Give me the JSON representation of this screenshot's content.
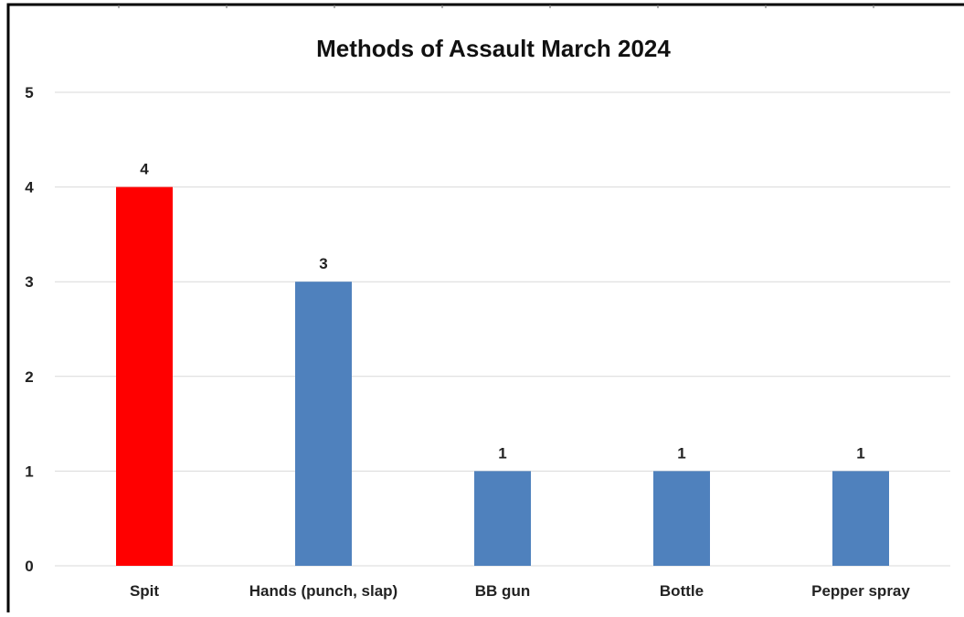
{
  "chart_data": {
    "type": "bar",
    "title": "Methods of Assault March 2024",
    "categories": [
      "Spit",
      "Hands (punch, slap)",
      "BB gun",
      "Bottle",
      "Pepper spray"
    ],
    "values": [
      4,
      3,
      1,
      1,
      1
    ],
    "data_labels": [
      "4",
      "3",
      "1",
      "1",
      "1"
    ],
    "y_ticks": [
      0,
      1,
      2,
      3,
      4,
      5
    ],
    "ylim": [
      0,
      5
    ],
    "xlabel": "",
    "ylabel": "",
    "grid": true,
    "legend": "none",
    "colors": {
      "default_bar": "#4f81bd",
      "highlight_bar": "#ff0000",
      "highlight_index": 0,
      "gridline": "#d9d9d9",
      "text": "#222222"
    }
  }
}
